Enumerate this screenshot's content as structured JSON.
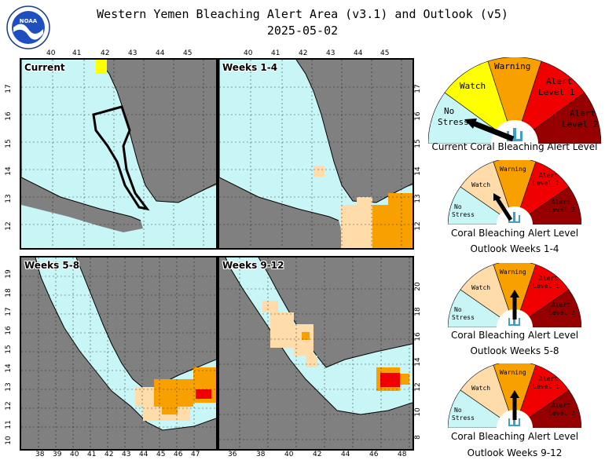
{
  "title_line1": "Western Yemen Bleaching Alert Area (v3.1) and Outlook (v5)",
  "title_line2": "2025-05-02",
  "logo_text": "NOAA",
  "colors": {
    "land": "#808080",
    "no_stress": "#c8f5f5",
    "watch": "#ffdcaa",
    "watch_current": "#ffff00",
    "warning": "#f8a000",
    "alert1": "#f00000",
    "alert2": "#960000",
    "border": "#000000"
  },
  "maps": {
    "current": {
      "label": "Current",
      "x_ticks": [
        "40",
        "41",
        "42",
        "43",
        "44",
        "45"
      ],
      "y_ticks": [
        "17",
        "16",
        "15",
        "14",
        "13",
        "12"
      ]
    },
    "weeks_1_4": {
      "label": "Weeks 1-4",
      "x_ticks": [
        "40",
        "41",
        "42",
        "43",
        "44",
        "45"
      ],
      "y_ticks": [
        "17",
        "16",
        "15",
        "14",
        "13",
        "12"
      ]
    },
    "weeks_5_8": {
      "label": "Weeks 5-8",
      "x_ticks": [
        "38",
        "39",
        "40",
        "41",
        "42",
        "43",
        "44",
        "45",
        "46",
        "47"
      ],
      "y_ticks": [
        "19",
        "18",
        "17",
        "16",
        "15",
        "14",
        "13",
        "12",
        "11",
        "10"
      ]
    },
    "weeks_9_12": {
      "label": "Weeks 9-12",
      "x_ticks": [
        "36",
        "38",
        "40",
        "42",
        "44",
        "46",
        "48"
      ],
      "y_ticks": [
        "20",
        "18",
        "16",
        "14",
        "12",
        "10",
        "8"
      ]
    }
  },
  "gauges": {
    "segments": {
      "no_stress": "No Stress",
      "watch": "Watch",
      "warning": "Warning",
      "alert1": "Alert Level 1",
      "alert2": "Alert Level 2"
    },
    "current": {
      "caption": "Current Coral Bleaching Alert Level",
      "level": "No Stress"
    },
    "outlook_1_4": {
      "caption_line1": "Coral Bleaching Alert Level",
      "caption_line2": "Outlook Weeks 1-4",
      "level": "Watch"
    },
    "outlook_5_8": {
      "caption_line1": "Coral Bleaching Alert Level",
      "caption_line2": "Outlook Weeks 5-8",
      "level": "Warning"
    },
    "outlook_9_12": {
      "caption_line1": "Coral Bleaching Alert Level",
      "caption_line2": "Outlook Weeks 9-12",
      "level": "Warning"
    }
  }
}
